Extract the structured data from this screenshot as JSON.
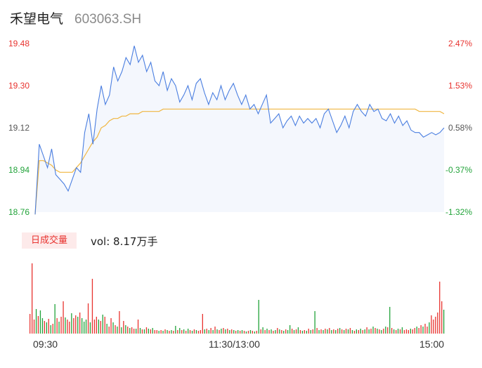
{
  "header": {
    "stock_name": "禾望电气",
    "stock_code": "603063.SH"
  },
  "colors": {
    "up": "#e8332f",
    "down": "#22a33a",
    "price_line": "#4a7ee0",
    "avg_line": "#f0b640",
    "neutral": "#555555"
  },
  "chart_data": [
    {
      "type": "line",
      "title": "",
      "y_price_ticks": [
        "19.48",
        "19.30",
        "19.12",
        "18.94",
        "18.76"
      ],
      "y_pct_ticks": [
        "2.47%",
        "1.53%",
        "0.58%",
        "-0.37%",
        "-1.32%"
      ],
      "ylim": [
        18.76,
        19.48
      ],
      "pre_close": 19.01,
      "series": [
        {
          "role": "price",
          "values": [
            18.75,
            19.05,
            19.0,
            18.95,
            19.03,
            18.92,
            18.9,
            18.88,
            18.85,
            18.9,
            18.95,
            18.93,
            19.1,
            19.18,
            19.05,
            19.2,
            19.3,
            19.22,
            19.26,
            19.38,
            19.32,
            19.36,
            19.42,
            19.39,
            19.47,
            19.4,
            19.43,
            19.36,
            19.4,
            19.32,
            19.3,
            19.36,
            19.28,
            19.33,
            19.3,
            19.23,
            19.26,
            19.3,
            19.24,
            19.31,
            19.33,
            19.27,
            19.22,
            19.27,
            19.24,
            19.3,
            19.24,
            19.28,
            19.31,
            19.26,
            19.22,
            19.26,
            19.2,
            19.22,
            19.18,
            19.22,
            19.26,
            19.14,
            19.16,
            19.18,
            19.12,
            19.15,
            19.17,
            19.13,
            19.17,
            19.14,
            19.16,
            19.14,
            19.16,
            19.12,
            19.18,
            19.2,
            19.15,
            19.1,
            19.13,
            19.17,
            19.12,
            19.19,
            19.22,
            19.19,
            19.17,
            19.22,
            19.19,
            19.2,
            19.16,
            19.15,
            19.18,
            19.14,
            19.17,
            19.13,
            19.15,
            19.11,
            19.1,
            19.1,
            19.08,
            19.09,
            19.1,
            19.09,
            19.1,
            19.12
          ]
        },
        {
          "role": "average",
          "values": [
            18.75,
            18.98,
            18.98,
            18.97,
            18.96,
            18.94,
            18.93,
            18.93,
            18.93,
            18.93,
            18.95,
            18.97,
            19.0,
            19.03,
            19.06,
            19.08,
            19.12,
            19.13,
            19.15,
            19.16,
            19.16,
            19.17,
            19.17,
            19.18,
            19.18,
            19.18,
            19.19,
            19.19,
            19.19,
            19.19,
            19.19,
            19.2,
            19.2,
            19.2,
            19.2,
            19.2,
            19.2,
            19.2,
            19.2,
            19.2,
            19.2,
            19.2,
            19.2,
            19.2,
            19.2,
            19.2,
            19.2,
            19.2,
            19.2,
            19.2,
            19.2,
            19.2,
            19.2,
            19.2,
            19.2,
            19.2,
            19.2,
            19.2,
            19.2,
            19.2,
            19.2,
            19.2,
            19.2,
            19.2,
            19.2,
            19.2,
            19.2,
            19.2,
            19.2,
            19.2,
            19.2,
            19.2,
            19.2,
            19.2,
            19.2,
            19.2,
            19.2,
            19.2,
            19.2,
            19.2,
            19.2,
            19.2,
            19.2,
            19.2,
            19.2,
            19.2,
            19.2,
            19.2,
            19.2,
            19.2,
            19.2,
            19.2,
            19.2,
            19.19,
            19.19,
            19.19,
            19.19,
            19.19,
            19.19,
            19.18
          ]
        }
      ]
    },
    {
      "type": "bar",
      "title": "",
      "volume_tag": "日成交量",
      "volume_text": "vol: 8.17万手",
      "x_tick_labels": [
        "09:30",
        "11:30/13:00",
        "15:00"
      ],
      "bars": [
        {
          "v": 0.28,
          "d": "up"
        },
        {
          "v": 1.0,
          "d": "up"
        },
        {
          "v": 0.2,
          "d": "up"
        },
        {
          "v": 0.35,
          "d": "down"
        },
        {
          "v": 0.25,
          "d": "up"
        },
        {
          "v": 0.33,
          "d": "down"
        },
        {
          "v": 0.22,
          "d": "down"
        },
        {
          "v": 0.18,
          "d": "up"
        },
        {
          "v": 0.16,
          "d": "down"
        },
        {
          "v": 0.21,
          "d": "up"
        },
        {
          "v": 0.12,
          "d": "down"
        },
        {
          "v": 0.14,
          "d": "up"
        },
        {
          "v": 0.42,
          "d": "down"
        },
        {
          "v": 0.22,
          "d": "up"
        },
        {
          "v": 0.17,
          "d": "down"
        },
        {
          "v": 0.24,
          "d": "up"
        },
        {
          "v": 0.46,
          "d": "up"
        },
        {
          "v": 0.23,
          "d": "down"
        },
        {
          "v": 0.2,
          "d": "up"
        },
        {
          "v": 0.17,
          "d": "up"
        },
        {
          "v": 0.29,
          "d": "down"
        },
        {
          "v": 0.22,
          "d": "up"
        },
        {
          "v": 0.26,
          "d": "up"
        },
        {
          "v": 0.24,
          "d": "down"
        },
        {
          "v": 0.3,
          "d": "up"
        },
        {
          "v": 0.22,
          "d": "down"
        },
        {
          "v": 0.17,
          "d": "down"
        },
        {
          "v": 0.2,
          "d": "down"
        },
        {
          "v": 0.43,
          "d": "up"
        },
        {
          "v": 0.16,
          "d": "down"
        },
        {
          "v": 0.78,
          "d": "up"
        },
        {
          "v": 0.2,
          "d": "up"
        },
        {
          "v": 0.24,
          "d": "up"
        },
        {
          "v": 0.2,
          "d": "down"
        },
        {
          "v": 0.18,
          "d": "up"
        },
        {
          "v": 0.27,
          "d": "down"
        },
        {
          "v": 0.24,
          "d": "up"
        },
        {
          "v": 0.14,
          "d": "down"
        },
        {
          "v": 0.1,
          "d": "up"
        },
        {
          "v": 0.22,
          "d": "up"
        },
        {
          "v": 0.16,
          "d": "down"
        },
        {
          "v": 0.12,
          "d": "up"
        },
        {
          "v": 0.1,
          "d": "down"
        },
        {
          "v": 0.32,
          "d": "up"
        },
        {
          "v": 0.09,
          "d": "down"
        },
        {
          "v": 0.18,
          "d": "up"
        },
        {
          "v": 0.12,
          "d": "down"
        },
        {
          "v": 0.1,
          "d": "up"
        },
        {
          "v": 0.08,
          "d": "down"
        },
        {
          "v": 0.09,
          "d": "up"
        },
        {
          "v": 0.07,
          "d": "up"
        },
        {
          "v": 0.07,
          "d": "down"
        },
        {
          "v": 0.2,
          "d": "up"
        },
        {
          "v": 0.08,
          "d": "down"
        },
        {
          "v": 0.06,
          "d": "up"
        },
        {
          "v": 0.06,
          "d": "down"
        },
        {
          "v": 0.09,
          "d": "up"
        },
        {
          "v": 0.07,
          "d": "down"
        },
        {
          "v": 0.06,
          "d": "up"
        },
        {
          "v": 0.08,
          "d": "down"
        },
        {
          "v": 0.05,
          "d": "up"
        },
        {
          "v": 0.05,
          "d": "up"
        },
        {
          "v": 0.04,
          "d": "down"
        },
        {
          "v": 0.05,
          "d": "up"
        },
        {
          "v": 0.04,
          "d": "down"
        },
        {
          "v": 0.06,
          "d": "up"
        },
        {
          "v": 0.05,
          "d": "down"
        },
        {
          "v": 0.04,
          "d": "up"
        },
        {
          "v": 0.05,
          "d": "down"
        },
        {
          "v": 0.04,
          "d": "up"
        },
        {
          "v": 0.11,
          "d": "down"
        },
        {
          "v": 0.05,
          "d": "up"
        },
        {
          "v": 0.08,
          "d": "down"
        },
        {
          "v": 0.05,
          "d": "up"
        },
        {
          "v": 0.06,
          "d": "down"
        },
        {
          "v": 0.04,
          "d": "up"
        },
        {
          "v": 0.07,
          "d": "down"
        },
        {
          "v": 0.05,
          "d": "up"
        },
        {
          "v": 0.04,
          "d": "down"
        },
        {
          "v": 0.06,
          "d": "up"
        },
        {
          "v": 0.05,
          "d": "down"
        },
        {
          "v": 0.04,
          "d": "up"
        },
        {
          "v": 0.05,
          "d": "up"
        },
        {
          "v": 0.28,
          "d": "up"
        },
        {
          "v": 0.06,
          "d": "down"
        },
        {
          "v": 0.07,
          "d": "up"
        },
        {
          "v": 0.05,
          "d": "down"
        },
        {
          "v": 0.08,
          "d": "up"
        },
        {
          "v": 0.05,
          "d": "down"
        },
        {
          "v": 0.1,
          "d": "up"
        },
        {
          "v": 0.06,
          "d": "down"
        },
        {
          "v": 0.05,
          "d": "up"
        },
        {
          "v": 0.07,
          "d": "down"
        },
        {
          "v": 0.08,
          "d": "up"
        },
        {
          "v": 0.06,
          "d": "down"
        },
        {
          "v": 0.07,
          "d": "up"
        },
        {
          "v": 0.05,
          "d": "down"
        },
        {
          "v": 0.06,
          "d": "up"
        },
        {
          "v": 0.05,
          "d": "down"
        },
        {
          "v": 0.04,
          "d": "up"
        },
        {
          "v": 0.05,
          "d": "down"
        },
        {
          "v": 0.04,
          "d": "up"
        },
        {
          "v": 0.05,
          "d": "down"
        },
        {
          "v": 0.04,
          "d": "up"
        },
        {
          "v": 0.03,
          "d": "down"
        },
        {
          "v": 0.04,
          "d": "up"
        },
        {
          "v": 0.05,
          "d": "down"
        },
        {
          "v": 0.04,
          "d": "up"
        },
        {
          "v": 0.03,
          "d": "down"
        },
        {
          "v": 0.04,
          "d": "up"
        },
        {
          "v": 0.48,
          "d": "down"
        },
        {
          "v": 0.06,
          "d": "up"
        },
        {
          "v": 0.09,
          "d": "down"
        },
        {
          "v": 0.05,
          "d": "up"
        },
        {
          "v": 0.07,
          "d": "down"
        },
        {
          "v": 0.05,
          "d": "up"
        },
        {
          "v": 0.06,
          "d": "down"
        },
        {
          "v": 0.04,
          "d": "up"
        },
        {
          "v": 0.05,
          "d": "down"
        },
        {
          "v": 0.08,
          "d": "up"
        },
        {
          "v": 0.06,
          "d": "down"
        },
        {
          "v": 0.05,
          "d": "up"
        },
        {
          "v": 0.04,
          "d": "down"
        },
        {
          "v": 0.06,
          "d": "up"
        },
        {
          "v": 0.05,
          "d": "down"
        },
        {
          "v": 0.12,
          "d": "down"
        },
        {
          "v": 0.07,
          "d": "up"
        },
        {
          "v": 0.05,
          "d": "down"
        },
        {
          "v": 0.06,
          "d": "up"
        },
        {
          "v": 0.09,
          "d": "down"
        },
        {
          "v": 0.05,
          "d": "up"
        },
        {
          "v": 0.04,
          "d": "down"
        },
        {
          "v": 0.05,
          "d": "up"
        },
        {
          "v": 0.04,
          "d": "down"
        },
        {
          "v": 0.07,
          "d": "up"
        },
        {
          "v": 0.05,
          "d": "down"
        },
        {
          "v": 0.06,
          "d": "up"
        },
        {
          "v": 0.32,
          "d": "down"
        },
        {
          "v": 0.08,
          "d": "up"
        },
        {
          "v": 0.05,
          "d": "down"
        },
        {
          "v": 0.06,
          "d": "up"
        },
        {
          "v": 0.05,
          "d": "down"
        },
        {
          "v": 0.07,
          "d": "up"
        },
        {
          "v": 0.06,
          "d": "down"
        },
        {
          "v": 0.08,
          "d": "up"
        },
        {
          "v": 0.05,
          "d": "down"
        },
        {
          "v": 0.06,
          "d": "up"
        },
        {
          "v": 0.05,
          "d": "down"
        },
        {
          "v": 0.07,
          "d": "up"
        },
        {
          "v": 0.08,
          "d": "down"
        },
        {
          "v": 0.06,
          "d": "up"
        },
        {
          "v": 0.05,
          "d": "down"
        },
        {
          "v": 0.07,
          "d": "up"
        },
        {
          "v": 0.06,
          "d": "down"
        },
        {
          "v": 0.08,
          "d": "up"
        },
        {
          "v": 0.05,
          "d": "down"
        },
        {
          "v": 0.04,
          "d": "up"
        },
        {
          "v": 0.06,
          "d": "down"
        },
        {
          "v": 0.05,
          "d": "up"
        },
        {
          "v": 0.07,
          "d": "down"
        },
        {
          "v": 0.05,
          "d": "up"
        },
        {
          "v": 0.06,
          "d": "down"
        },
        {
          "v": 0.09,
          "d": "up"
        },
        {
          "v": 0.06,
          "d": "down"
        },
        {
          "v": 0.07,
          "d": "up"
        },
        {
          "v": 0.1,
          "d": "down"
        },
        {
          "v": 0.08,
          "d": "up"
        },
        {
          "v": 0.07,
          "d": "down"
        },
        {
          "v": 0.06,
          "d": "up"
        },
        {
          "v": 0.05,
          "d": "down"
        },
        {
          "v": 0.07,
          "d": "up"
        },
        {
          "v": 0.1,
          "d": "down"
        },
        {
          "v": 0.09,
          "d": "up"
        },
        {
          "v": 0.38,
          "d": "down"
        },
        {
          "v": 0.08,
          "d": "up"
        },
        {
          "v": 0.06,
          "d": "down"
        },
        {
          "v": 0.05,
          "d": "up"
        },
        {
          "v": 0.07,
          "d": "down"
        },
        {
          "v": 0.06,
          "d": "up"
        },
        {
          "v": 0.09,
          "d": "down"
        },
        {
          "v": 0.05,
          "d": "up"
        },
        {
          "v": 0.06,
          "d": "up"
        },
        {
          "v": 0.05,
          "d": "up"
        },
        {
          "v": 0.07,
          "d": "down"
        },
        {
          "v": 0.06,
          "d": "up"
        },
        {
          "v": 0.08,
          "d": "up"
        },
        {
          "v": 0.1,
          "d": "down"
        },
        {
          "v": 0.08,
          "d": "up"
        },
        {
          "v": 0.12,
          "d": "up"
        },
        {
          "v": 0.1,
          "d": "down"
        },
        {
          "v": 0.14,
          "d": "up"
        },
        {
          "v": 0.1,
          "d": "up"
        },
        {
          "v": 0.16,
          "d": "down"
        },
        {
          "v": 0.26,
          "d": "up"
        },
        {
          "v": 0.2,
          "d": "up"
        },
        {
          "v": 0.24,
          "d": "up"
        },
        {
          "v": 0.3,
          "d": "up"
        },
        {
          "v": 0.74,
          "d": "up"
        },
        {
          "v": 0.46,
          "d": "up"
        },
        {
          "v": 0.34,
          "d": "down"
        }
      ]
    }
  ]
}
